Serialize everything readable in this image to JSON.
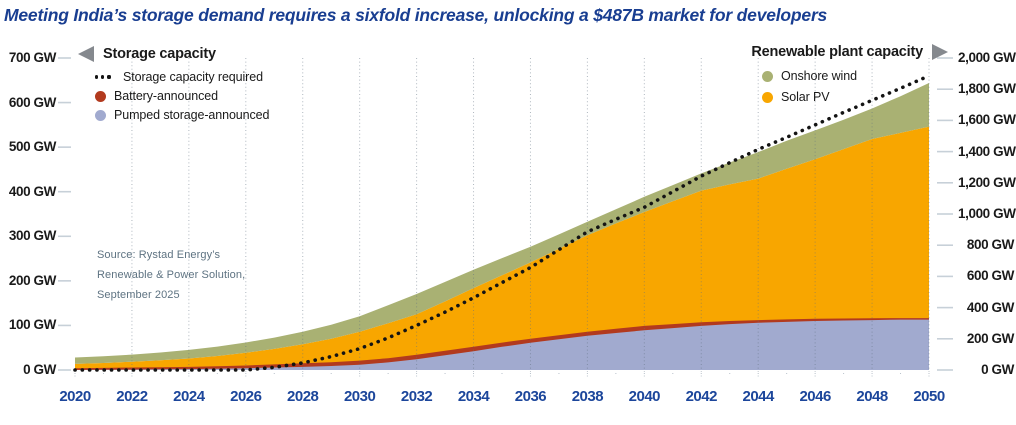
{
  "title": "Meeting India’s storage demand requires a sixfold increase, unlocking a $487B market for developers",
  "left_panel": {
    "header": "Storage capacity",
    "legend": [
      {
        "label": "Storage capacity required",
        "swatch": "dotted-line",
        "color": "#141414"
      },
      {
        "label": "Battery-announced",
        "swatch": "circle",
        "color": "#B23A1E"
      },
      {
        "label": "Pumped storage-announced",
        "swatch": "circle",
        "color": "#A1AACF"
      }
    ]
  },
  "right_panel": {
    "header": "Renewable plant capacity",
    "legend": [
      {
        "label": "Onshore wind",
        "swatch": "circle",
        "color": "#A9B173"
      },
      {
        "label": "Solar PV",
        "swatch": "circle",
        "color": "#F8A600"
      }
    ]
  },
  "source": {
    "line1": "Source: Rystad Energy’s",
    "line2": "Renewable & Power Solution,",
    "line3": "September 2025"
  },
  "axes": {
    "left_tick_labels": [
      "700 GW",
      "600 GW",
      "500 GW",
      "400 GW",
      "300 GW",
      "200 GW",
      "100 GW",
      "0 GW"
    ],
    "right_tick_labels": [
      "2,000 GW",
      "1,800 GW",
      "1,600 GW",
      "1,400 GW",
      "1,200 GW",
      "1,000 GW",
      "800 GW",
      "600 GW",
      "400 GW",
      "200 GW",
      "0 GW"
    ],
    "x_tick_labels": [
      "2020",
      "2022",
      "2024",
      "2026",
      "2028",
      "2030",
      "2032",
      "2034",
      "2036",
      "2038",
      "2040",
      "2042",
      "2044",
      "2046",
      "2048",
      "2050"
    ]
  },
  "chart_data": {
    "type": "area",
    "title": "Meeting India’s storage demand requires a sixfold increase, unlocking a $487B market for developers",
    "x": [
      2020,
      2021,
      2022,
      2023,
      2024,
      2025,
      2026,
      2027,
      2028,
      2029,
      2030,
      2031,
      2032,
      2033,
      2034,
      2035,
      2036,
      2037,
      2038,
      2039,
      2040,
      2041,
      2042,
      2043,
      2044,
      2045,
      2046,
      2047,
      2048,
      2049,
      2050
    ],
    "left_axis": {
      "label": "Storage capacity",
      "unit": "GW",
      "min": 0,
      "max": 700,
      "tick_step": 100
    },
    "right_axis": {
      "label": "Renewable plant capacity",
      "unit": "GW",
      "min": 0,
      "max": 2000,
      "tick_step": 200
    },
    "grid": "vertical-dotted-every-2-years",
    "legend_position": "top-left-and-top-right",
    "series": [
      {
        "name": "Solar PV",
        "axis": "right",
        "kind": "area",
        "stack": "renewables",
        "color": "#F8A600",
        "values": [
          39,
          45,
          53,
          62,
          74,
          90,
          110,
          135,
          165,
          200,
          245,
          300,
          357,
          440,
          525,
          607,
          690,
          777,
          864,
          940,
          1013,
          1082,
          1150,
          1190,
          1227,
          1290,
          1351,
          1416,
          1481,
          1520,
          1560
        ]
      },
      {
        "name": "Onshore wind",
        "axis": "right",
        "kind": "area",
        "stack": "renewables",
        "color": "#A9B173",
        "values": [
          41,
          43,
          46,
          50,
          55,
          60,
          66,
          73,
          80,
          90,
          100,
          115,
          130,
          125,
          118,
          110,
          100,
          92,
          86,
          90,
          97,
          103,
          110,
          140,
          170,
          180,
          185,
          188,
          195,
          235,
          280
        ]
      },
      {
        "name": "Pumped storage-announced",
        "axis": "left",
        "kind": "area",
        "stack": "storage",
        "color": "#A1AACF",
        "values": [
          3,
          3.5,
          4,
          4.5,
          5,
          6,
          7,
          8.5,
          10,
          12,
          15,
          20,
          27,
          36,
          45,
          55,
          64,
          72,
          80,
          86,
          92,
          97,
          102,
          106,
          109,
          111,
          113,
          114,
          115,
          116,
          116
        ]
      },
      {
        "name": "Battery-announced",
        "axis": "left",
        "kind": "area",
        "stack": "storage",
        "color": "#B23A1E",
        "values": [
          1,
          1.2,
          1.5,
          1.8,
          2,
          2.5,
          3,
          4,
          5,
          5.5,
          6,
          6.5,
          7,
          7,
          7,
          6.5,
          6,
          6,
          6,
          6.5,
          7,
          6,
          5,
          4,
          3,
          2.5,
          2,
          1.5,
          1,
          0.5,
          0.5
        ]
      },
      {
        "name": "Storage capacity required",
        "axis": "left",
        "kind": "dotted-line",
        "color": "#141414",
        "values": [
          0,
          0,
          0,
          0,
          0,
          0,
          0,
          6,
          16,
          30,
          48,
          72,
          100,
          130,
          162,
          196,
          230,
          270,
          310,
          338,
          365,
          400,
          435,
          465,
          495,
          522,
          550,
          578,
          605,
          632,
          660
        ]
      }
    ]
  },
  "colors": {
    "title_text": "#193E91",
    "x_label_text": "#1C469B",
    "tick_text": "#1A1A1A",
    "source_text": "#5E7382",
    "tick_dash": "#C7D0D8",
    "year_stub": "#B9C2CB",
    "gridline": "rgba(96,112,128,0.5)",
    "header_triangle": "#85898E"
  }
}
